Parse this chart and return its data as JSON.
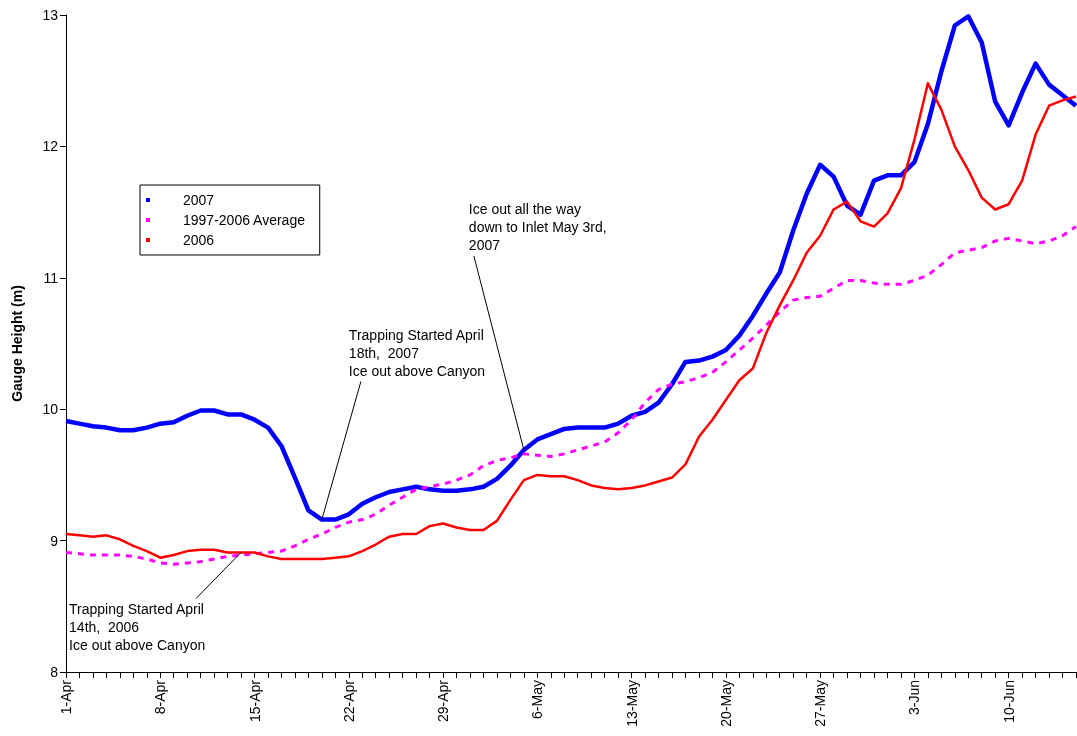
{
  "chart_data": {
    "type": "line",
    "ylabel": "Gauge Height (m)",
    "x": [
      "--04-01",
      "--04-02",
      "--04-03",
      "--04-04",
      "--04-05",
      "--04-06",
      "--04-07",
      "--04-08",
      "--04-09",
      "--04-10",
      "--04-11",
      "--04-12",
      "--04-13",
      "--04-14",
      "--04-15",
      "--04-16",
      "--04-17",
      "--04-18",
      "--04-19",
      "--04-20",
      "--04-21",
      "--04-22",
      "--04-23",
      "--04-24",
      "--04-25",
      "--04-26",
      "--04-27",
      "--04-28",
      "--04-29",
      "--04-30",
      "--05-01",
      "--05-02",
      "--05-03",
      "--05-04",
      "--05-05",
      "--05-06",
      "--05-07",
      "--05-08",
      "--05-09",
      "--05-10",
      "--05-11",
      "--05-12",
      "--05-13",
      "--05-14",
      "--05-15",
      "--05-16",
      "--05-17",
      "--05-18",
      "--05-19",
      "--05-20",
      "--05-21",
      "--05-22",
      "--05-23",
      "--05-24",
      "--05-25",
      "--05-26",
      "--05-27",
      "--05-28",
      "--05-29",
      "--05-30",
      "--05-31",
      "--06-01",
      "--06-02",
      "--06-03",
      "--06-04",
      "--06-05",
      "--06-06",
      "--06-07",
      "--06-08",
      "--06-09",
      "--06-10",
      "--06-11",
      "--06-12",
      "--06-13",
      "--06-14",
      "--06-15"
    ],
    "series": [
      {
        "name": "2007",
        "color": "#0000ff",
        "line_style": "solid",
        "values": [
          9.91,
          9.89,
          9.87,
          9.86,
          9.84,
          9.84,
          9.86,
          9.89,
          9.9,
          9.95,
          9.99,
          9.99,
          9.96,
          9.96,
          9.92,
          9.86,
          9.72,
          9.48,
          9.23,
          9.16,
          9.16,
          9.2,
          9.28,
          9.33,
          9.37,
          9.39,
          9.41,
          9.39,
          9.38,
          9.38,
          9.39,
          9.41,
          9.47,
          9.57,
          9.69,
          9.77,
          9.81,
          9.85,
          9.86,
          9.86,
          9.86,
          9.89,
          9.95,
          9.98,
          10.05,
          10.19,
          10.36,
          10.37,
          10.4,
          10.45,
          10.56,
          10.71,
          10.88,
          11.04,
          11.36,
          11.64,
          11.86,
          11.77,
          11.55,
          11.48,
          11.74,
          11.78,
          11.78,
          11.88,
          12.17,
          12.57,
          12.92,
          12.99,
          12.79,
          12.34,
          12.16,
          12.41,
          12.63,
          12.47,
          12.39,
          12.31
        ]
      },
      {
        "name": "1997-2006 Average",
        "color": "#ff00ff",
        "line_style": "dashed",
        "values": [
          8.91,
          8.9,
          8.89,
          8.89,
          8.89,
          8.88,
          8.86,
          8.83,
          8.82,
          8.83,
          8.84,
          8.86,
          8.88,
          8.89,
          8.9,
          8.91,
          8.92,
          8.96,
          9.01,
          9.05,
          9.1,
          9.14,
          9.16,
          9.2,
          9.27,
          9.33,
          9.39,
          9.41,
          9.43,
          9.46,
          9.5,
          9.57,
          9.61,
          9.63,
          9.66,
          9.65,
          9.64,
          9.66,
          9.69,
          9.72,
          9.75,
          9.82,
          9.92,
          10.05,
          10.15,
          10.19,
          10.21,
          10.24,
          10.28,
          10.36,
          10.45,
          10.54,
          10.64,
          10.74,
          10.83,
          10.85,
          10.86,
          10.92,
          10.98,
          10.98,
          10.96,
          10.95,
          10.95,
          10.98,
          11.02,
          11.1,
          11.19,
          11.21,
          11.23,
          11.28,
          11.3,
          11.28,
          11.26,
          11.28,
          11.32,
          11.39
        ]
      },
      {
        "name": "2006",
        "color": "#ff0000",
        "line_style": "solid",
        "values": [
          9.05,
          9.04,
          9.03,
          9.04,
          9.01,
          8.96,
          8.92,
          8.87,
          8.89,
          8.92,
          8.93,
          8.93,
          8.91,
          8.91,
          8.91,
          8.88,
          8.86,
          8.86,
          8.86,
          8.86,
          8.87,
          8.88,
          8.92,
          8.97,
          9.03,
          9.05,
          9.05,
          9.11,
          9.13,
          9.1,
          9.08,
          9.08,
          9.15,
          9.31,
          9.46,
          9.5,
          9.49,
          9.49,
          9.46,
          9.42,
          9.4,
          9.39,
          9.4,
          9.42,
          9.45,
          9.48,
          9.58,
          9.79,
          9.92,
          10.07,
          10.22,
          10.31,
          10.58,
          10.79,
          10.98,
          11.19,
          11.32,
          11.52,
          11.58,
          11.43,
          11.39,
          11.49,
          11.68,
          12.05,
          12.48,
          12.28,
          12.0,
          11.82,
          11.61,
          11.52,
          11.56,
          11.74,
          12.09,
          12.31,
          12.35,
          12.38
        ]
      }
    ],
    "xlim": [
      "--04-01",
      "--06-15"
    ],
    "xticks": [
      {
        "value": "--04-01",
        "label": "1-Apr"
      },
      {
        "value": "--04-08",
        "label": "8-Apr"
      },
      {
        "value": "--04-15",
        "label": "15-Apr"
      },
      {
        "value": "--04-22",
        "label": "22-Apr"
      },
      {
        "value": "--04-29",
        "label": "29-Apr"
      },
      {
        "value": "--05-06",
        "label": "6-May"
      },
      {
        "value": "--05-13",
        "label": "13-May"
      },
      {
        "value": "--05-20",
        "label": "20-May"
      },
      {
        "value": "--05-27",
        "label": "27-May"
      },
      {
        "value": "--06-03",
        "label": "3-Jun"
      },
      {
        "value": "--06-10",
        "label": "10-Jun"
      }
    ],
    "ylim": [
      8,
      13
    ],
    "yticks": [
      8,
      9,
      10,
      11,
      12,
      13
    ],
    "legend": "left",
    "marker": "none",
    "annotations": [
      {
        "text": "Trapping Started April\n14th,  2006\nIce out above Canyon",
        "x": "--04-14",
        "y": 8.91
      },
      {
        "text": "Trapping Started April\n18th,  2007\nIce out above Canyon",
        "x": "--04-20",
        "y": 9.16
      },
      {
        "text": "Ice out all the way\ndown to Inlet May 3rd,\n2007",
        "x": "--05-05",
        "y": 9.69
      }
    ]
  }
}
